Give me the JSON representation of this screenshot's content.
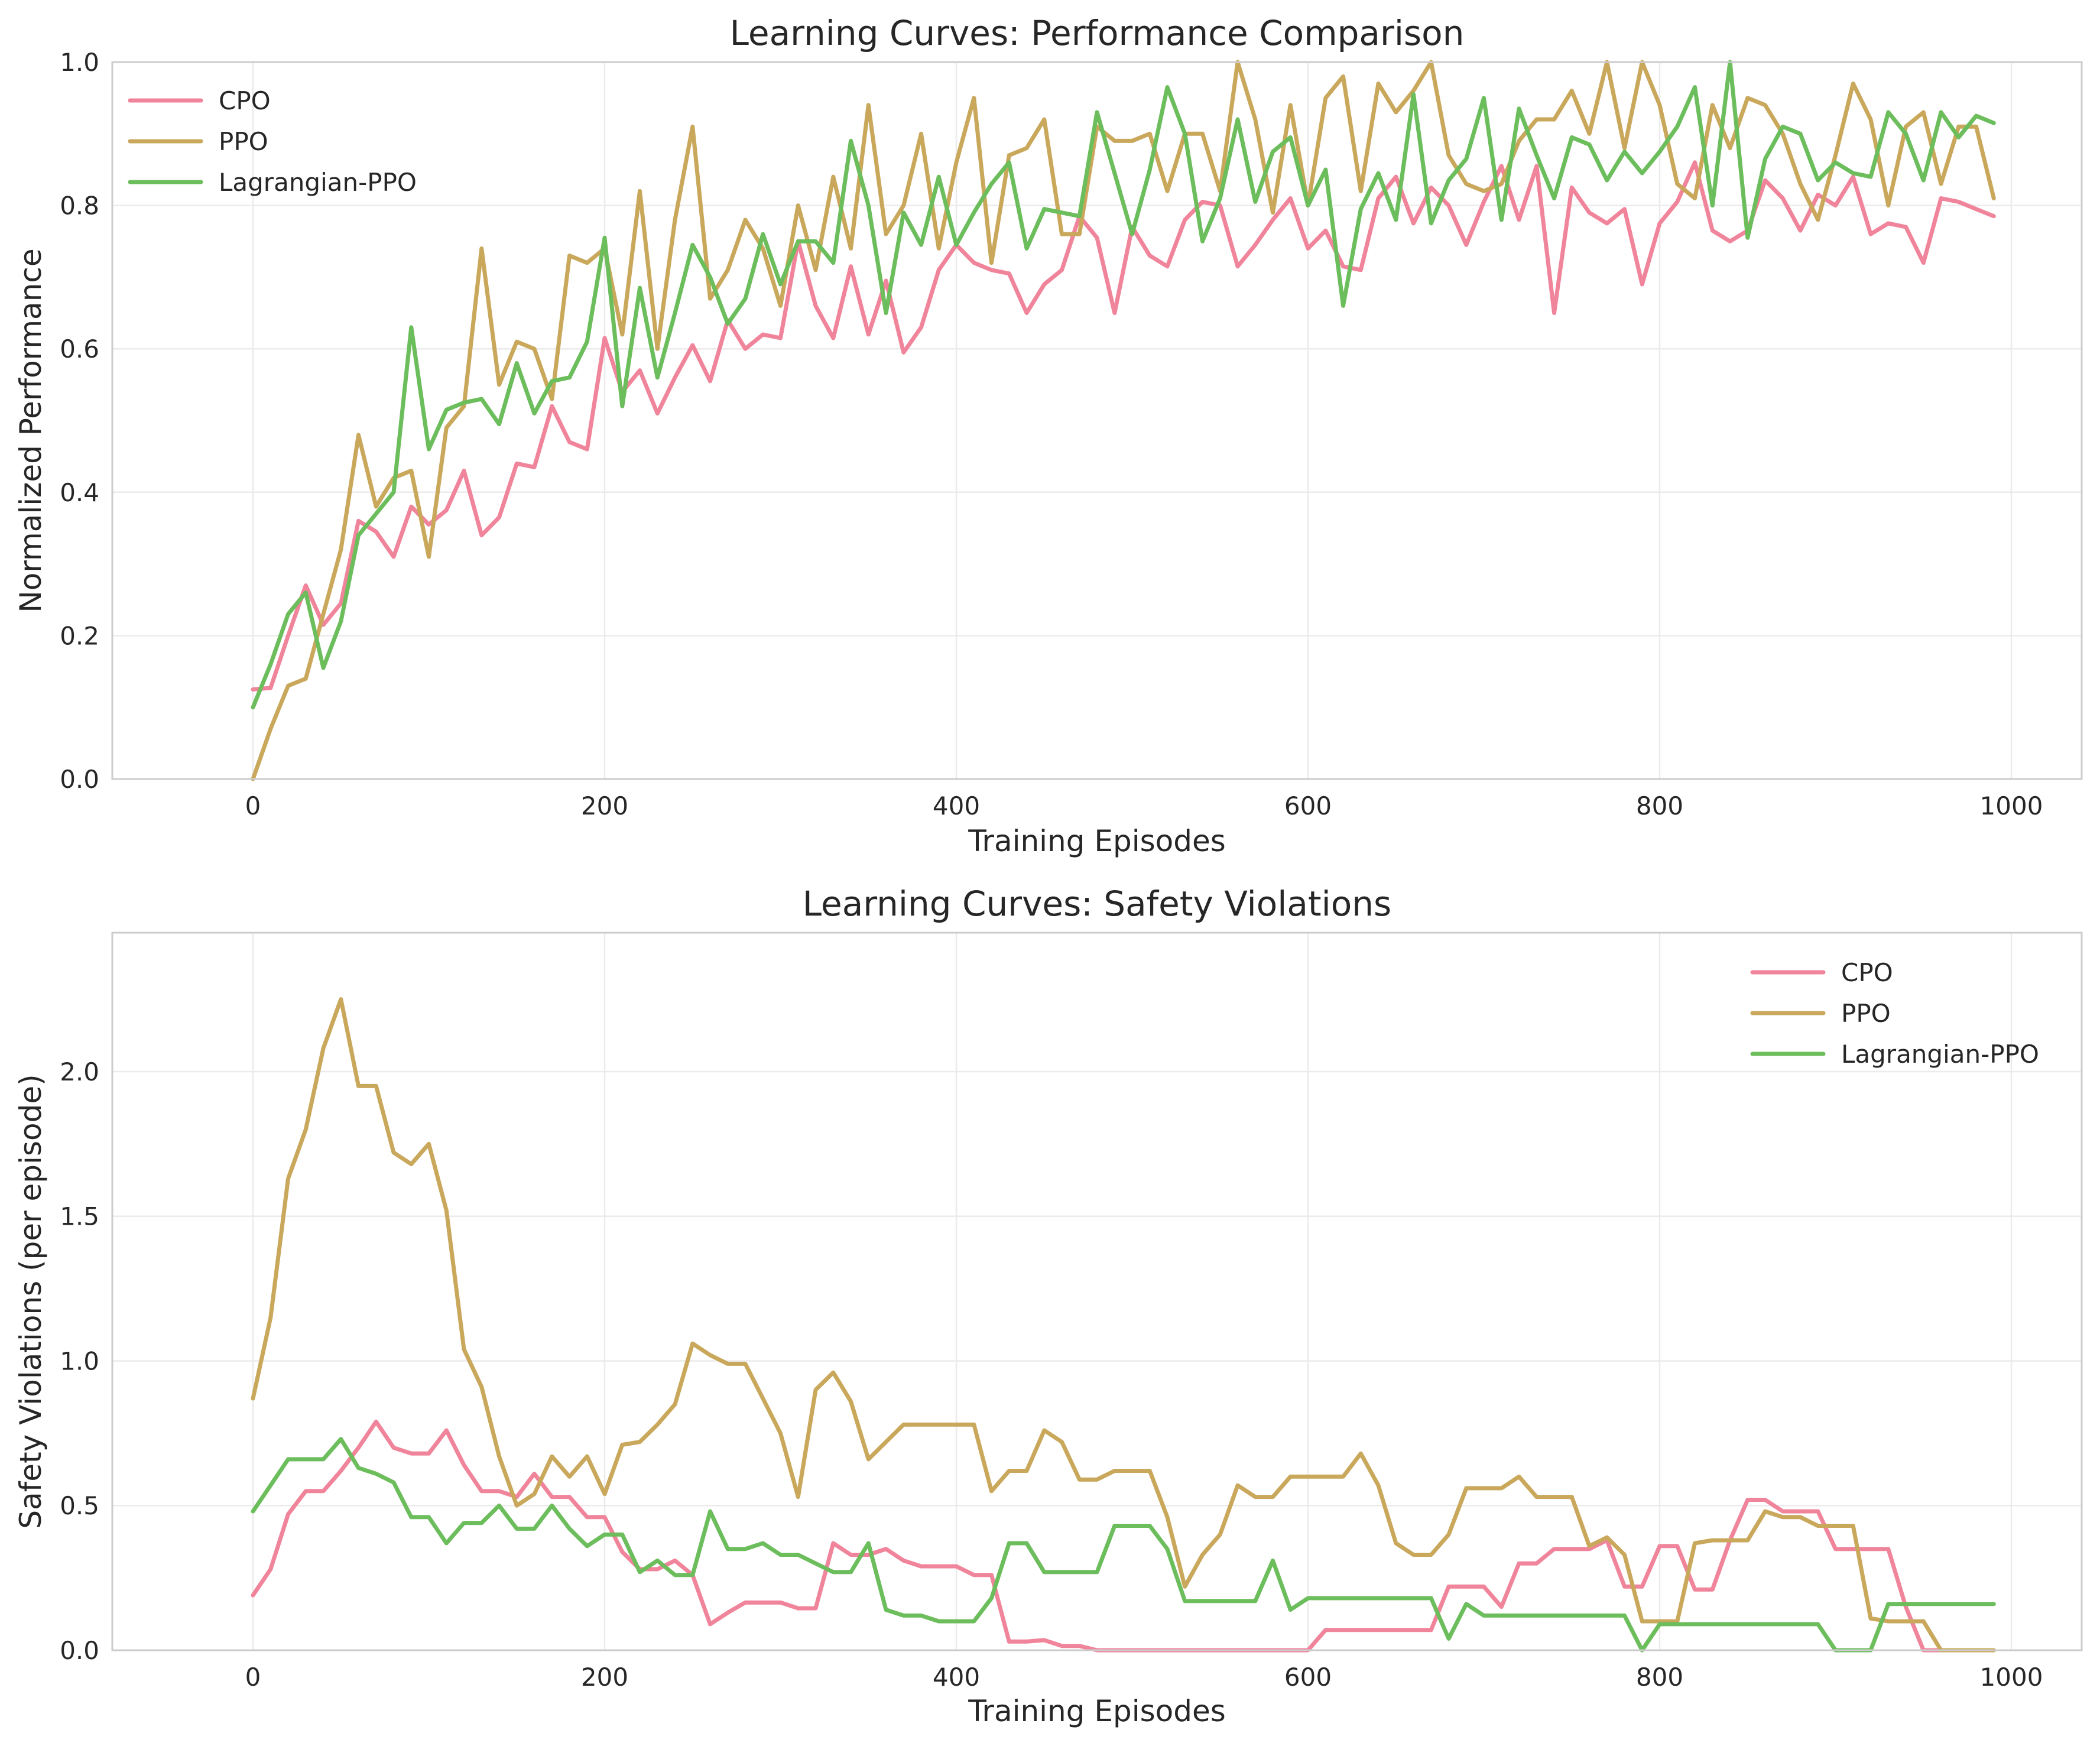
{
  "colors": {
    "CPO": "#f0849b",
    "PPO": "#c9a85c",
    "Lagrangian-PPO": "#6cbd5c",
    "grid": "#ebebeb",
    "frame": "#cccccc",
    "text": "#262626"
  },
  "chart_data": [
    {
      "type": "line",
      "title": "Learning Curves: Performance Comparison",
      "xlabel": "Training Episodes",
      "ylabel": "Normalized Performance",
      "xlim": [
        -80,
        1040
      ],
      "ylim": [
        0,
        1.0
      ],
      "xticks": [
        0,
        200,
        400,
        600,
        800,
        1000
      ],
      "xtick_labels": [
        "0",
        "200",
        "400",
        "600",
        "800",
        "1000"
      ],
      "yticks": [
        0,
        0.2,
        0.4,
        0.6,
        0.8,
        1.0
      ],
      "ytick_labels": [
        "0.0",
        "0.2",
        "0.4",
        "0.6",
        "0.8",
        "1.0"
      ],
      "grid": true,
      "legend": "upper-left",
      "x": [
        0,
        10,
        20,
        30,
        40,
        50,
        60,
        70,
        80,
        90,
        100,
        110,
        120,
        130,
        140,
        150,
        160,
        170,
        180,
        190,
        200,
        210,
        220,
        230,
        240,
        250,
        260,
        270,
        280,
        290,
        300,
        310,
        320,
        330,
        340,
        350,
        360,
        370,
        380,
        390,
        400,
        410,
        420,
        430,
        440,
        450,
        460,
        470,
        480,
        490,
        500,
        510,
        520,
        530,
        540,
        550,
        560,
        570,
        580,
        590,
        600,
        610,
        620,
        630,
        640,
        650,
        660,
        670,
        680,
        690,
        700,
        710,
        720,
        730,
        740,
        750,
        760,
        770,
        780,
        790,
        800,
        810,
        820,
        830,
        840,
        850,
        860,
        870,
        880,
        890,
        900,
        910,
        920,
        930,
        940,
        950,
        960,
        970,
        980,
        990
      ],
      "series": [
        {
          "name": "CPO",
          "values": [
            0.125,
            0.127,
            0.2,
            0.27,
            0.215,
            0.245,
            0.36,
            0.345,
            0.31,
            0.38,
            0.355,
            0.375,
            0.43,
            0.34,
            0.365,
            0.44,
            0.435,
            0.52,
            0.47,
            0.46,
            0.615,
            0.54,
            0.57,
            0.51,
            0.56,
            0.605,
            0.555,
            0.64,
            0.6,
            0.62,
            0.615,
            0.75,
            0.66,
            0.615,
            0.715,
            0.62,
            0.695,
            0.595,
            0.63,
            0.71,
            0.745,
            0.72,
            0.71,
            0.705,
            0.65,
            0.69,
            0.71,
            0.785,
            0.755,
            0.65,
            0.77,
            0.73,
            0.715,
            0.78,
            0.805,
            0.8,
            0.715,
            0.745,
            0.78,
            0.81,
            0.74,
            0.765,
            0.715,
            0.71,
            0.81,
            0.84,
            0.775,
            0.825,
            0.8,
            0.745,
            0.805,
            0.855,
            0.78,
            0.855,
            0.65,
            0.825,
            0.79,
            0.775,
            0.795,
            0.69,
            0.775,
            0.805,
            0.86,
            0.765,
            0.75,
            0.765,
            0.835,
            0.81,
            0.765,
            0.815,
            0.8,
            0.84,
            0.76,
            0.775,
            0.77,
            0.72,
            0.81,
            0.805,
            0.795,
            0.785
          ]
        },
        {
          "name": "PPO",
          "values": [
            0.0,
            0.07,
            0.13,
            0.14,
            0.23,
            0.32,
            0.48,
            0.38,
            0.42,
            0.43,
            0.31,
            0.49,
            0.52,
            0.74,
            0.55,
            0.61,
            0.6,
            0.53,
            0.73,
            0.72,
            0.74,
            0.62,
            0.82,
            0.6,
            0.78,
            0.91,
            0.67,
            0.71,
            0.78,
            0.74,
            0.66,
            0.8,
            0.71,
            0.84,
            0.74,
            0.94,
            0.76,
            0.8,
            0.9,
            0.74,
            0.86,
            0.95,
            0.72,
            0.87,
            0.88,
            0.92,
            0.76,
            0.76,
            0.91,
            0.89,
            0.89,
            0.9,
            0.82,
            0.9,
            0.9,
            0.82,
            1.0,
            0.92,
            0.79,
            0.94,
            0.8,
            0.95,
            0.98,
            0.82,
            0.97,
            0.93,
            0.96,
            1.0,
            0.87,
            0.83,
            0.82,
            0.83,
            0.89,
            0.92,
            0.92,
            0.96,
            0.9,
            1.0,
            0.88,
            1.0,
            0.94,
            0.83,
            0.81,
            0.94,
            0.88,
            0.95,
            0.94,
            0.9,
            0.83,
            0.78,
            0.87,
            0.97,
            0.92,
            0.8,
            0.91,
            0.93,
            0.83,
            0.91,
            0.91,
            0.81
          ]
        },
        {
          "name": "Lagrangian-PPO",
          "values": [
            0.1,
            0.16,
            0.23,
            0.26,
            0.155,
            0.22,
            0.34,
            0.37,
            0.4,
            0.63,
            0.46,
            0.515,
            0.525,
            0.53,
            0.495,
            0.58,
            0.51,
            0.555,
            0.56,
            0.61,
            0.755,
            0.52,
            0.685,
            0.56,
            0.65,
            0.745,
            0.7,
            0.635,
            0.67,
            0.76,
            0.69,
            0.75,
            0.75,
            0.72,
            0.89,
            0.8,
            0.65,
            0.79,
            0.745,
            0.84,
            0.745,
            0.79,
            0.83,
            0.86,
            0.74,
            0.795,
            0.79,
            0.785,
            0.93,
            0.845,
            0.76,
            0.85,
            0.965,
            0.9,
            0.75,
            0.81,
            0.92,
            0.805,
            0.875,
            0.895,
            0.8,
            0.85,
            0.66,
            0.795,
            0.845,
            0.78,
            0.955,
            0.775,
            0.835,
            0.865,
            0.95,
            0.78,
            0.935,
            0.87,
            0.81,
            0.895,
            0.885,
            0.835,
            0.875,
            0.845,
            0.875,
            0.91,
            0.965,
            0.8,
            1.0,
            0.755,
            0.865,
            0.91,
            0.9,
            0.835,
            0.86,
            0.845,
            0.84,
            0.93,
            0.9,
            0.835,
            0.93,
            0.895,
            0.925,
            0.915
          ]
        }
      ]
    },
    {
      "type": "line",
      "title": "Learning Curves: Safety Violations",
      "xlabel": "Training Episodes",
      "ylabel": "Safety Violations (per episode)",
      "xlim": [
        -80,
        1040
      ],
      "ylim": [
        0,
        2.48
      ],
      "xticks": [
        0,
        200,
        400,
        600,
        800,
        1000
      ],
      "xtick_labels": [
        "0",
        "200",
        "400",
        "600",
        "800",
        "1000"
      ],
      "yticks": [
        0,
        0.5,
        1.0,
        1.5,
        2.0
      ],
      "ytick_labels": [
        "0.0",
        "0.5",
        "1.0",
        "1.5",
        "2.0"
      ],
      "grid": true,
      "legend": "upper-right",
      "x": [
        0,
        10,
        20,
        30,
        40,
        50,
        60,
        70,
        80,
        90,
        100,
        110,
        120,
        130,
        140,
        150,
        160,
        170,
        180,
        190,
        200,
        210,
        220,
        230,
        240,
        250,
        260,
        270,
        280,
        290,
        300,
        310,
        320,
        330,
        340,
        350,
        360,
        370,
        380,
        390,
        400,
        410,
        420,
        430,
        440,
        450,
        460,
        470,
        480,
        490,
        500,
        510,
        520,
        530,
        540,
        550,
        560,
        570,
        580,
        590,
        600,
        610,
        620,
        630,
        640,
        650,
        660,
        670,
        680,
        690,
        700,
        710,
        720,
        730,
        740,
        750,
        760,
        770,
        780,
        790,
        800,
        810,
        820,
        830,
        840,
        850,
        860,
        870,
        880,
        890,
        900,
        910,
        920,
        930,
        940,
        950,
        960,
        970,
        980,
        990
      ],
      "series": [
        {
          "name": "CPO",
          "values": [
            0.19,
            0.28,
            0.47,
            0.55,
            0.55,
            0.62,
            0.7,
            0.79,
            0.7,
            0.68,
            0.68,
            0.76,
            0.64,
            0.55,
            0.55,
            0.53,
            0.61,
            0.53,
            0.53,
            0.46,
            0.46,
            0.34,
            0.28,
            0.28,
            0.31,
            0.26,
            0.09,
            0.13,
            0.165,
            0.165,
            0.165,
            0.145,
            0.145,
            0.37,
            0.33,
            0.33,
            0.35,
            0.31,
            0.29,
            0.29,
            0.29,
            0.26,
            0.26,
            0.03,
            0.03,
            0.035,
            0.015,
            0.015,
            0.0,
            0.0,
            0.0,
            0.0,
            0.0,
            0.0,
            0.0,
            0.0,
            0.0,
            0.0,
            0.0,
            0.0,
            0.0,
            0.07,
            0.07,
            0.07,
            0.07,
            0.07,
            0.07,
            0.07,
            0.22,
            0.22,
            0.22,
            0.15,
            0.3,
            0.3,
            0.35,
            0.35,
            0.35,
            0.38,
            0.22,
            0.22,
            0.36,
            0.36,
            0.21,
            0.21,
            0.38,
            0.52,
            0.52,
            0.48,
            0.48,
            0.48,
            0.35,
            0.35,
            0.35,
            0.35,
            0.15,
            0.0,
            0.0,
            0.0,
            0.0,
            0.0
          ]
        },
        {
          "name": "PPO",
          "values": [
            0.87,
            1.15,
            1.63,
            1.8,
            2.08,
            2.25,
            1.95,
            1.95,
            1.72,
            1.68,
            1.75,
            1.52,
            1.04,
            0.91,
            0.67,
            0.5,
            0.54,
            0.67,
            0.6,
            0.67,
            0.54,
            0.71,
            0.72,
            0.78,
            0.85,
            1.06,
            1.02,
            0.99,
            0.99,
            0.87,
            0.75,
            0.53,
            0.9,
            0.96,
            0.86,
            0.66,
            0.72,
            0.78,
            0.78,
            0.78,
            0.78,
            0.78,
            0.55,
            0.62,
            0.62,
            0.76,
            0.72,
            0.59,
            0.59,
            0.62,
            0.62,
            0.62,
            0.46,
            0.22,
            0.33,
            0.4,
            0.57,
            0.53,
            0.53,
            0.6,
            0.6,
            0.6,
            0.6,
            0.68,
            0.57,
            0.37,
            0.33,
            0.33,
            0.4,
            0.56,
            0.56,
            0.56,
            0.6,
            0.53,
            0.53,
            0.53,
            0.36,
            0.39,
            0.33,
            0.1,
            0.1,
            0.1,
            0.37,
            0.38,
            0.38,
            0.38,
            0.48,
            0.46,
            0.46,
            0.43,
            0.43,
            0.43,
            0.11,
            0.1,
            0.1,
            0.1,
            0.0,
            0.0,
            0.0,
            0.0
          ]
        },
        {
          "name": "Lagrangian-PPO",
          "values": [
            0.48,
            0.57,
            0.66,
            0.66,
            0.66,
            0.73,
            0.63,
            0.61,
            0.58,
            0.46,
            0.46,
            0.37,
            0.44,
            0.44,
            0.5,
            0.42,
            0.42,
            0.5,
            0.42,
            0.36,
            0.4,
            0.4,
            0.27,
            0.31,
            0.26,
            0.26,
            0.48,
            0.35,
            0.35,
            0.37,
            0.33,
            0.33,
            0.3,
            0.27,
            0.27,
            0.37,
            0.14,
            0.12,
            0.12,
            0.1,
            0.1,
            0.1,
            0.18,
            0.37,
            0.37,
            0.27,
            0.27,
            0.27,
            0.27,
            0.43,
            0.43,
            0.43,
            0.35,
            0.17,
            0.17,
            0.17,
            0.17,
            0.17,
            0.31,
            0.14,
            0.18,
            0.18,
            0.18,
            0.18,
            0.18,
            0.18,
            0.18,
            0.18,
            0.04,
            0.16,
            0.12,
            0.12,
            0.12,
            0.12,
            0.12,
            0.12,
            0.12,
            0.12,
            0.12,
            0.0,
            0.09,
            0.09,
            0.09,
            0.09,
            0.09,
            0.09,
            0.09,
            0.09,
            0.09,
            0.09,
            0.0,
            0.0,
            0.0,
            0.16,
            0.16,
            0.16,
            0.16,
            0.16,
            0.16,
            0.16
          ]
        }
      ]
    }
  ]
}
